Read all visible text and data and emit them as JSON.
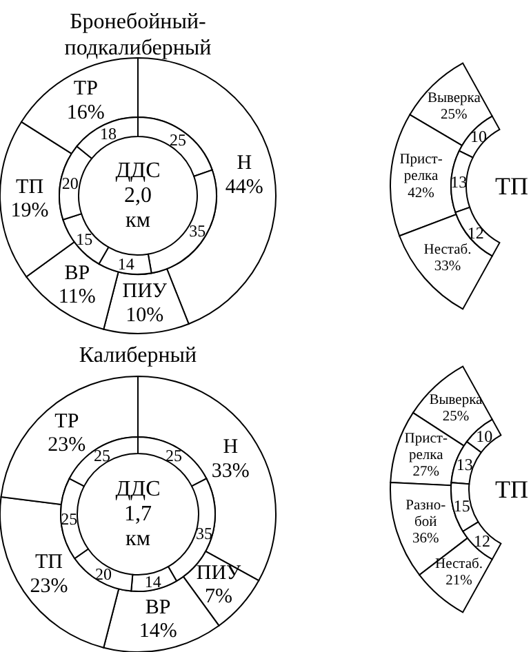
{
  "chart_data": [
    {
      "type": "donut",
      "title": "Бронебойный-\nподкалиберный",
      "categories": [
        "Н",
        "ПИУ",
        "ВР",
        "ТП",
        "ТР"
      ],
      "values": [
        44,
        10,
        11,
        19,
        16
      ],
      "value_labels": [
        "44%",
        "10%",
        "11%",
        "19%",
        "16%"
      ]
    },
    {
      "type": "donut",
      "annotations": [
        "ДДС\n2,0\nкм"
      ],
      "categories": [
        null,
        null,
        null,
        null,
        null,
        null
      ],
      "values": [
        25,
        35,
        14,
        15,
        20,
        18
      ],
      "data_labels": true
    },
    {
      "type": "donut",
      "title": "ТП",
      "categories": [
        "Выверка",
        "Прист-\nрелка",
        "Нестаб."
      ],
      "values": [
        25,
        42,
        33
      ],
      "value_labels": [
        "25%",
        "42%",
        "33%"
      ]
    },
    {
      "type": "donut",
      "categories": [
        null,
        null,
        null
      ],
      "values": [
        10,
        13,
        12
      ],
      "data_labels": true
    },
    {
      "type": "donut",
      "title": "Калиберный",
      "categories": [
        "Н",
        "ПИУ",
        "ВР",
        "ТП",
        "ТР"
      ],
      "values": [
        33,
        7,
        14,
        23,
        23
      ],
      "value_labels": [
        "33%",
        "7%",
        "14%",
        "23%",
        "23%"
      ]
    },
    {
      "type": "donut",
      "annotations": [
        "ДДС\n1,7\nкм"
      ],
      "categories": [
        null,
        null,
        null,
        null,
        null,
        null
      ],
      "values": [
        25,
        35,
        14,
        20,
        25,
        25
      ],
      "data_labels": true
    },
    {
      "type": "donut",
      "title": "ТП",
      "categories": [
        "Выверка",
        "Прист-\nрелка",
        "Разно-\nбой",
        "Нестаб."
      ],
      "values": [
        25,
        27,
        36,
        21
      ],
      "value_labels": [
        "25%",
        "27%",
        "36%",
        "21%"
      ]
    },
    {
      "type": "donut",
      "categories": [
        null,
        null,
        null,
        null
      ],
      "values": [
        10,
        13,
        15,
        12
      ],
      "data_labels": true
    }
  ]
}
